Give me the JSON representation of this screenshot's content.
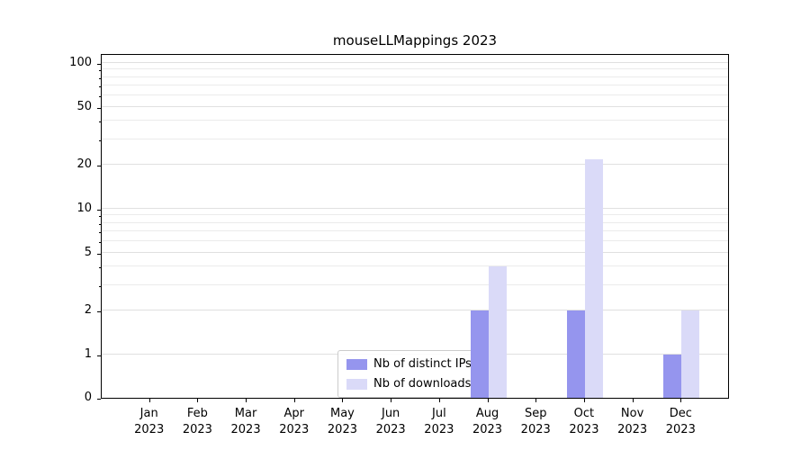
{
  "chart_data": {
    "type": "bar",
    "title": "mouseLLMappings 2023",
    "yscale": "symlog",
    "ylim": [
      0,
      120
    ],
    "yticks": [
      0,
      1,
      2,
      5,
      10,
      20,
      50,
      100
    ],
    "grid_minor": [
      3,
      4,
      6,
      7,
      8,
      9,
      30,
      40,
      60,
      70,
      80,
      90
    ],
    "grid": "horizontal",
    "legend_position": "lower center",
    "categories": [
      {
        "month": "Jan",
        "year": "2023"
      },
      {
        "month": "Feb",
        "year": "2023"
      },
      {
        "month": "Mar",
        "year": "2023"
      },
      {
        "month": "Apr",
        "year": "2023"
      },
      {
        "month": "May",
        "year": "2023"
      },
      {
        "month": "Jun",
        "year": "2023"
      },
      {
        "month": "Jul",
        "year": "2023"
      },
      {
        "month": "Aug",
        "year": "2023"
      },
      {
        "month": "Sep",
        "year": "2023"
      },
      {
        "month": "Oct",
        "year": "2023"
      },
      {
        "month": "Nov",
        "year": "2023"
      },
      {
        "month": "Dec",
        "year": "2023"
      }
    ],
    "series": [
      {
        "name": "Nb of distinct IPs",
        "color": "#9595ee",
        "values": [
          0,
          0,
          0,
          0,
          0,
          0,
          0,
          2,
          0,
          2,
          0,
          1
        ]
      },
      {
        "name": "Nb of downloads",
        "color": "#dadaf8",
        "values": [
          0,
          0,
          0,
          0,
          0,
          0,
          0,
          4,
          0,
          22,
          0,
          2
        ]
      }
    ]
  }
}
